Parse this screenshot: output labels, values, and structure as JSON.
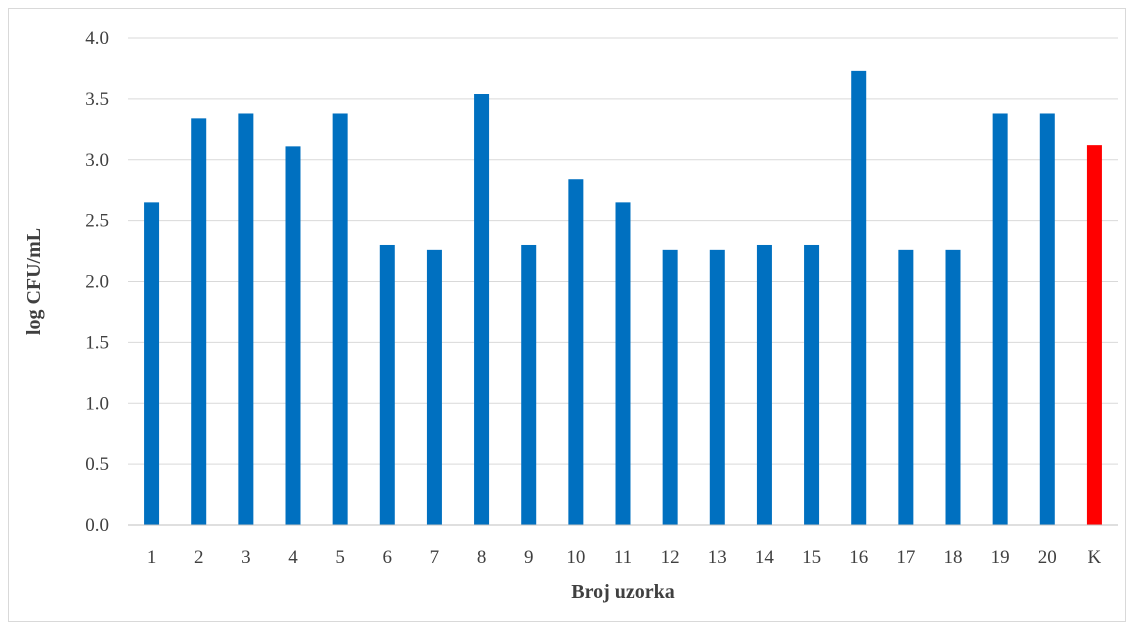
{
  "chart_data": {
    "type": "bar",
    "title": "",
    "xlabel": "Broj uzorka",
    "ylabel": "log CFU/mL",
    "ylim": [
      0,
      4.0
    ],
    "yticks": [
      "0.0",
      "0.5",
      "1.0",
      "1.5",
      "2.0",
      "2.5",
      "3.0",
      "3.5",
      "4.0"
    ],
    "grid": "horizontal",
    "legend": "none",
    "categories": [
      "1",
      "2",
      "3",
      "4",
      "5",
      "6",
      "7",
      "8",
      "9",
      "10",
      "11",
      "12",
      "13",
      "14",
      "15",
      "16",
      "17",
      "18",
      "19",
      "20",
      "K"
    ],
    "values": [
      2.65,
      3.34,
      3.38,
      3.11,
      3.38,
      2.3,
      2.26,
      3.54,
      2.3,
      2.84,
      2.65,
      2.26,
      2.26,
      2.3,
      2.3,
      3.73,
      2.26,
      2.26,
      3.38,
      3.38,
      3.12
    ],
    "colors": {
      "bar": "#0070c0",
      "highlight": "#ff0000",
      "grid": "#d9d9d9",
      "axis": "#bfbfbf"
    },
    "highlight_category": "K"
  }
}
